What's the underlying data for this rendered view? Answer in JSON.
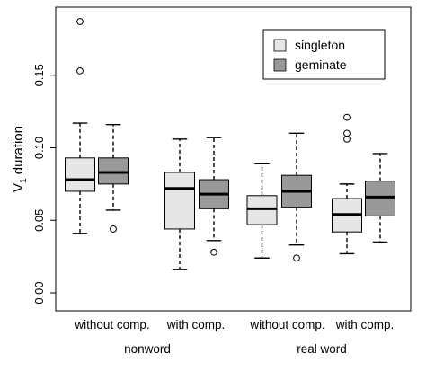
{
  "chart_data": {
    "type": "boxplot",
    "ylabel": "V1 duration",
    "ylabel_main": "V",
    "ylabel_sub": "1",
    "ylabel_rest": " duration",
    "ylim": [
      0.0,
      0.19
    ],
    "yticks": [
      0.0,
      0.05,
      0.1,
      0.15
    ],
    "ytick_labels": [
      "0.00",
      "0.05",
      "0.10",
      "0.15"
    ],
    "grid": false,
    "legend_position": "top-right",
    "series": [
      {
        "name": "singleton",
        "color": "#e6e6e6"
      },
      {
        "name": "geminate",
        "color": "#999999"
      }
    ],
    "categories": [
      {
        "label": "without comp.",
        "group": "nonword"
      },
      {
        "label": "with comp.",
        "group": "nonword"
      },
      {
        "label": "without comp.",
        "group": "real word"
      },
      {
        "label": "with comp.",
        "group": "real word"
      }
    ],
    "groups": [
      "nonword",
      "real word"
    ],
    "boxes": [
      {
        "category": 0,
        "series": 0,
        "whislo": 0.041,
        "q1": 0.07,
        "med": 0.078,
        "q3": 0.093,
        "whishi": 0.117,
        "fliers": [
          0.187,
          0.153
        ]
      },
      {
        "category": 0,
        "series": 1,
        "whislo": 0.057,
        "q1": 0.075,
        "med": 0.083,
        "q3": 0.093,
        "whishi": 0.116,
        "fliers": [
          0.044
        ]
      },
      {
        "category": 1,
        "series": 0,
        "whislo": 0.016,
        "q1": 0.044,
        "med": 0.072,
        "q3": 0.083,
        "whishi": 0.106,
        "fliers": []
      },
      {
        "category": 1,
        "series": 1,
        "whislo": 0.036,
        "q1": 0.058,
        "med": 0.068,
        "q3": 0.078,
        "whishi": 0.107,
        "fliers": [
          0.028
        ]
      },
      {
        "category": 2,
        "series": 0,
        "whislo": 0.024,
        "q1": 0.047,
        "med": 0.058,
        "q3": 0.067,
        "whishi": 0.089,
        "fliers": []
      },
      {
        "category": 2,
        "series": 1,
        "whislo": 0.033,
        "q1": 0.059,
        "med": 0.07,
        "q3": 0.081,
        "whishi": 0.11,
        "fliers": [
          0.024
        ]
      },
      {
        "category": 3,
        "series": 0,
        "whislo": 0.027,
        "q1": 0.042,
        "med": 0.054,
        "q3": 0.065,
        "whishi": 0.075,
        "fliers": [
          0.121,
          0.11,
          0.106
        ]
      },
      {
        "category": 3,
        "series": 1,
        "whislo": 0.035,
        "q1": 0.053,
        "med": 0.066,
        "q3": 0.077,
        "whishi": 0.096,
        "fliers": []
      }
    ]
  }
}
